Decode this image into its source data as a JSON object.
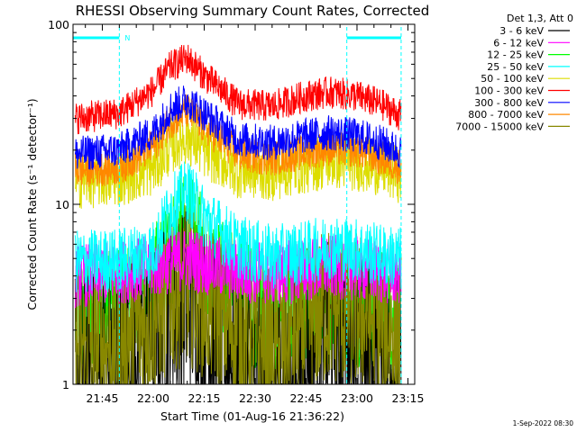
{
  "chart_data": {
    "type": "line",
    "title": "RHESSI Observing Summary Count Rates, Corrected",
    "xlabel": "Start Time (01-Aug-16 21:36:22)",
    "ylabel": "Corrected Count Rate (s⁻¹ detector⁻¹)",
    "yscale": "log",
    "ylim": [
      1,
      100
    ],
    "xlim": [
      "21:36:22",
      "23:17:00"
    ],
    "x_tick_labels": [
      "21:45",
      "22:00",
      "22:15",
      "22:30",
      "22:45",
      "23:00",
      "23:15"
    ],
    "y_tick_labels": [
      "1",
      "10",
      "100"
    ],
    "grid": false,
    "legend_position": "top-right",
    "legend_title": "Det 1,3, Att 0",
    "timestamp": "1-Sep-2022 08:30",
    "night_marker_label": "N",
    "night_intervals": [
      [
        "21:36:22",
        "21:50:00"
      ],
      [
        "22:57:00",
        "23:13:00"
      ]
    ],
    "sample_times": [
      "21:37",
      "21:50",
      "22:00",
      "22:05",
      "22:10",
      "22:15",
      "22:25",
      "22:35",
      "22:45",
      "22:52",
      "23:00",
      "23:07",
      "23:13"
    ],
    "series": [
      {
        "name": "3 - 6 keV",
        "color": "#000000",
        "values": [
          1.2,
          1.3,
          1.8,
          2.5,
          3.0,
          2.2,
          1.3,
          1.0,
          1.4,
          1.8,
          1.6,
          1.3,
          1.2
        ]
      },
      {
        "name": "6 - 12 keV",
        "color": "#ff00ff",
        "values": [
          4.0,
          4.2,
          4.5,
          4.8,
          5.0,
          4.7,
          4.3,
          4.1,
          4.3,
          4.5,
          4.4,
          4.2,
          4.1
        ]
      },
      {
        "name": "12 - 25 keV",
        "color": "#00ff00",
        "values": [
          2.4,
          2.5,
          3.3,
          5.5,
          7.0,
          5.0,
          3.0,
          2.5,
          2.7,
          2.9,
          2.8,
          2.6,
          2.5
        ]
      },
      {
        "name": "25 - 50 keV",
        "color": "#00ffff",
        "values": [
          4.8,
          4.9,
          5.5,
          9.5,
          12.0,
          8.5,
          5.8,
          5.1,
          5.4,
          5.8,
          5.6,
          5.2,
          5.0
        ]
      },
      {
        "name": "50 - 100 keV",
        "color": "#dddd00",
        "values": [
          13.5,
          14.0,
          16.0,
          21.0,
          24.0,
          20.0,
          15.5,
          15.0,
          16.5,
          17.5,
          17.0,
          16.0,
          14.5
        ]
      },
      {
        "name": "100 - 300 keV",
        "color": "#ff0000",
        "values": [
          30.0,
          32.0,
          43.0,
          58.0,
          65.0,
          52.0,
          36.0,
          35.0,
          40.0,
          42.0,
          40.0,
          36.0,
          31.0
        ]
      },
      {
        "name": "300 - 800 keV",
        "color": "#0000ff",
        "values": [
          19.0,
          20.0,
          25.0,
          34.0,
          38.0,
          32.0,
          23.0,
          22.0,
          24.0,
          25.0,
          24.0,
          22.0,
          19.5
        ]
      },
      {
        "name": "800 - 7000 keV",
        "color": "#ff8800",
        "values": [
          15.5,
          16.0,
          21.0,
          29.0,
          33.0,
          27.0,
          19.0,
          18.0,
          19.5,
          20.5,
          20.0,
          18.0,
          16.0
        ]
      },
      {
        "name": "7000 - 15000 keV",
        "color": "#888800",
        "values": [
          1.6,
          1.7,
          2.4,
          3.2,
          3.6,
          3.0,
          2.0,
          1.5,
          2.2,
          2.8,
          2.6,
          2.2,
          1.9
        ]
      }
    ]
  }
}
